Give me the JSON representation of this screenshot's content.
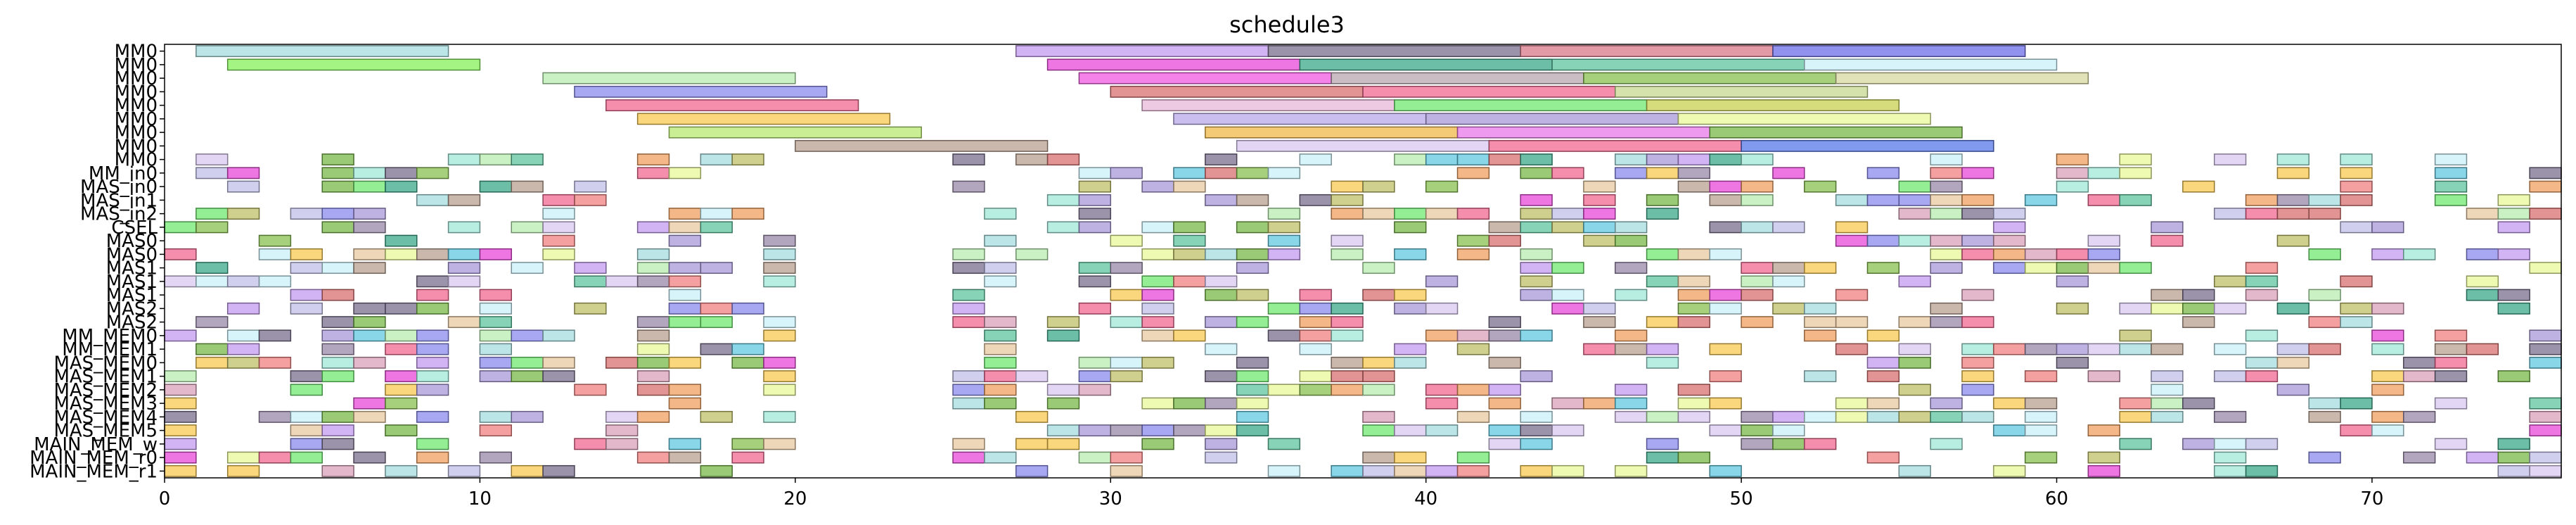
{
  "chart_data": {
    "type": "gantt",
    "title": "schedule3",
    "xlabel": "",
    "ylabel": "",
    "xlim": [
      0,
      76
    ],
    "grid": false,
    "legend": "none",
    "x_ticks": [
      0,
      10,
      20,
      30,
      40,
      50,
      60,
      70
    ],
    "rows": [
      "MM0",
      "MM0",
      "MM0",
      "MM0",
      "MM0",
      "MM0",
      "MM0",
      "MM0",
      "MM0",
      "MM_in0",
      "MAS_in0",
      "MAS_in1",
      "MAS_in2",
      "CSEL",
      "MAS0",
      "MAS0",
      "MAS1",
      "MAS1",
      "MAS1",
      "MAS2",
      "MAS2",
      "MM_MEM0",
      "MM_MEM1",
      "MAS_MEM0",
      "MAS_MEM1",
      "MAS_MEM2",
      "MAS_MEM3",
      "MAS_MEM4",
      "MAS_MEM5",
      "MAIN_MEM_w",
      "MAIN_MEM_r0",
      "MAIN_MEM_r1"
    ],
    "tasks": [
      {
        "row": 0,
        "start": 1,
        "end": 9,
        "color": "#a6dce0"
      },
      {
        "row": 0,
        "start": 27,
        "end": 35,
        "color": "#c39bf0"
      },
      {
        "row": 0,
        "start": 35,
        "end": 43,
        "color": "#7a6f8c"
      },
      {
        "row": 0,
        "start": 43,
        "end": 51,
        "color": "#d9788a"
      },
      {
        "row": 0,
        "start": 51,
        "end": 59,
        "color": "#6c6ce8"
      },
      {
        "row": 1,
        "start": 2,
        "end": 10,
        "color": "#86f05a"
      },
      {
        "row": 1,
        "start": 28,
        "end": 36,
        "color": "#e848d8"
      },
      {
        "row": 1,
        "start": 36,
        "end": 44,
        "color": "#3ca88a"
      },
      {
        "row": 1,
        "start": 44,
        "end": 52,
        "color": "#5fc4a0"
      },
      {
        "row": 1,
        "start": 52,
        "end": 60,
        "color": "#c8f0f8"
      },
      {
        "row": 2,
        "start": 12,
        "end": 20,
        "color": "#b8ecb0"
      },
      {
        "row": 2,
        "start": 29,
        "end": 37,
        "color": "#f058e0"
      },
      {
        "row": 2,
        "start": 37,
        "end": 45,
        "color": "#b8a8b0"
      },
      {
        "row": 2,
        "start": 45,
        "end": 53,
        "color": "#88c050"
      },
      {
        "row": 2,
        "start": 53,
        "end": 61,
        "color": "#d8d8a0"
      },
      {
        "row": 3,
        "start": 13,
        "end": 21,
        "color": "#8a8aee"
      },
      {
        "row": 3,
        "start": 30,
        "end": 38,
        "color": "#d87070"
      },
      {
        "row": 3,
        "start": 38,
        "end": 46,
        "color": "#f06890"
      },
      {
        "row": 3,
        "start": 46,
        "end": 54,
        "color": "#c8d890"
      },
      {
        "row": 4,
        "start": 14,
        "end": 22,
        "color": "#f06890"
      },
      {
        "row": 4,
        "start": 31,
        "end": 39,
        "color": "#e8b8d8"
      },
      {
        "row": 4,
        "start": 39,
        "end": 47,
        "color": "#70e870"
      },
      {
        "row": 4,
        "start": 47,
        "end": 55,
        "color": "#c8d050"
      },
      {
        "row": 5,
        "start": 15,
        "end": 23,
        "color": "#f8c850"
      },
      {
        "row": 5,
        "start": 32,
        "end": 40,
        "color": "#b8a8e8"
      },
      {
        "row": 5,
        "start": 40,
        "end": 48,
        "color": "#a898d8"
      },
      {
        "row": 5,
        "start": 48,
        "end": 56,
        "color": "#e8f898"
      },
      {
        "row": 6,
        "start": 16,
        "end": 24,
        "color": "#b8e870"
      },
      {
        "row": 6,
        "start": 33,
        "end": 41,
        "color": "#f0b848"
      },
      {
        "row": 6,
        "start": 41,
        "end": 49,
        "color": "#e878e8"
      },
      {
        "row": 6,
        "start": 49,
        "end": 57,
        "color": "#78b848"
      },
      {
        "row": 7,
        "start": 20,
        "end": 28,
        "color": "#b8a090"
      },
      {
        "row": 7,
        "start": 34,
        "end": 42,
        "color": "#d8c8f0"
      },
      {
        "row": 7,
        "start": 42,
        "end": 50,
        "color": "#f06890"
      },
      {
        "row": 7,
        "start": 50,
        "end": 58,
        "color": "#5878e8"
      }
    ],
    "background_tasks": []
  },
  "colors": {
    "palette": [
      "#f06890",
      "#70e870",
      "#8a8aee",
      "#f8c850",
      "#b8a090",
      "#5fc4a0",
      "#e848d8",
      "#a6dce0",
      "#c39bf0",
      "#88c050",
      "#d87070",
      "#3ca88a",
      "#7a6f8c",
      "#f0a060",
      "#e8f898",
      "#c8f0f8",
      "#b8ecb0",
      "#d8c8f0",
      "#a898d8",
      "#60c8e0",
      "#d8a0b8",
      "#9888a8",
      "#a0e8d8",
      "#e8c8a0",
      "#78b848",
      "#c0c068",
      "#c0c0e8",
      "#f08080"
    ]
  }
}
